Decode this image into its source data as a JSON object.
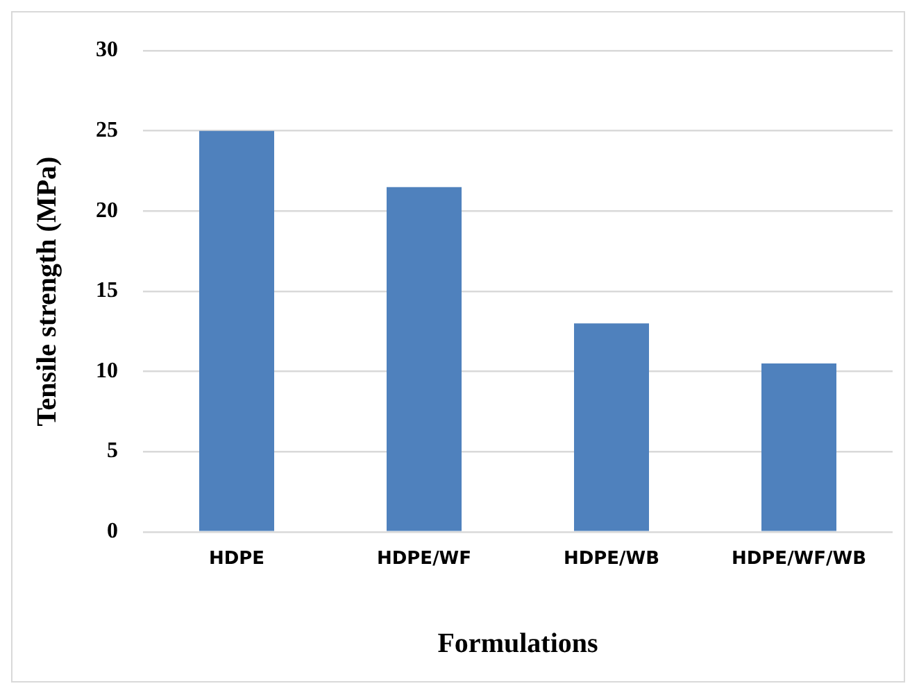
{
  "chart_data": {
    "type": "bar",
    "xlabel": "Formulations",
    "ylabel": "Tensile strength (MPa)",
    "categories": [
      "HDPE",
      "HDPE/WF",
      "HDPE/WB",
      "HDPE/WF/WB"
    ],
    "values": [
      25,
      21.5,
      13,
      10.5
    ],
    "color": "#4f81bd",
    "ylim": [
      0,
      30
    ],
    "yticks": [
      0,
      5,
      10,
      15,
      20,
      25,
      30
    ],
    "grid": "y"
  }
}
